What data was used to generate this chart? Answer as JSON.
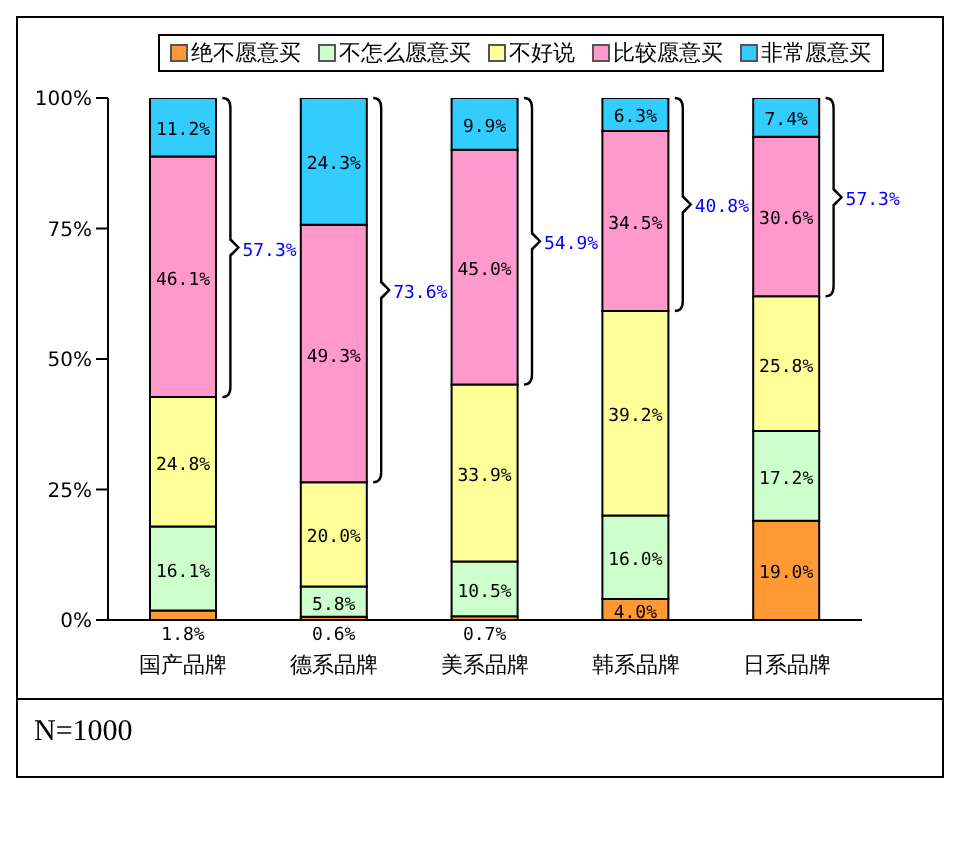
{
  "chart_data": {
    "type": "bar",
    "stacked": true,
    "categories": [
      "国产品牌",
      "德系品牌",
      "美系品牌",
      "韩系品牌",
      "日系品牌"
    ],
    "series": [
      {
        "name": "绝不愿意买",
        "color": "#ff9933",
        "values": [
          1.8,
          0.6,
          0.7,
          4.0,
          19.0
        ],
        "value_labels": [
          "1.8%",
          "0.6%",
          "0.7%",
          "4.0%",
          "19.0%"
        ]
      },
      {
        "name": "不怎么愿意买",
        "color": "#ccffcc",
        "values": [
          16.1,
          5.8,
          10.5,
          16.0,
          17.2
        ],
        "value_labels": [
          "16.1%",
          "5.8%",
          "10.5%",
          "16.0%",
          "17.2%"
        ]
      },
      {
        "name": "不好说",
        "color": "#ffff99",
        "values": [
          24.8,
          20.0,
          33.9,
          39.2,
          25.8
        ],
        "value_labels": [
          "24.8%",
          "20.0%",
          "33.9%",
          "39.2%",
          "25.8%"
        ]
      },
      {
        "name": "比较愿意买",
        "color": "#ff99cc",
        "values": [
          46.1,
          49.3,
          45.0,
          34.5,
          30.6
        ],
        "value_labels": [
          "46.1%",
          "49.3%",
          "45.0%",
          "34.5%",
          "30.6%"
        ]
      },
      {
        "name": "非常愿意买",
        "color": "#33ccff",
        "values": [
          11.2,
          24.3,
          9.9,
          6.3,
          7.4
        ],
        "value_labels": [
          "11.2%",
          "24.3%",
          "9.9%",
          "6.3%",
          "7.4%"
        ]
      }
    ],
    "ylim": [
      0,
      100
    ],
    "yticks": [
      {
        "value": 0,
        "label": "0%"
      },
      {
        "value": 25,
        "label": "25%"
      },
      {
        "value": 50,
        "label": "50%"
      },
      {
        "value": 75,
        "label": "75%"
      },
      {
        "value": 100,
        "label": "100%"
      }
    ],
    "grid": false,
    "legend": "top",
    "annotations": [
      "57.3%",
      "73.6%",
      "54.9%",
      "40.8%",
      "57.3%",
      "N=1000"
    ]
  }
}
